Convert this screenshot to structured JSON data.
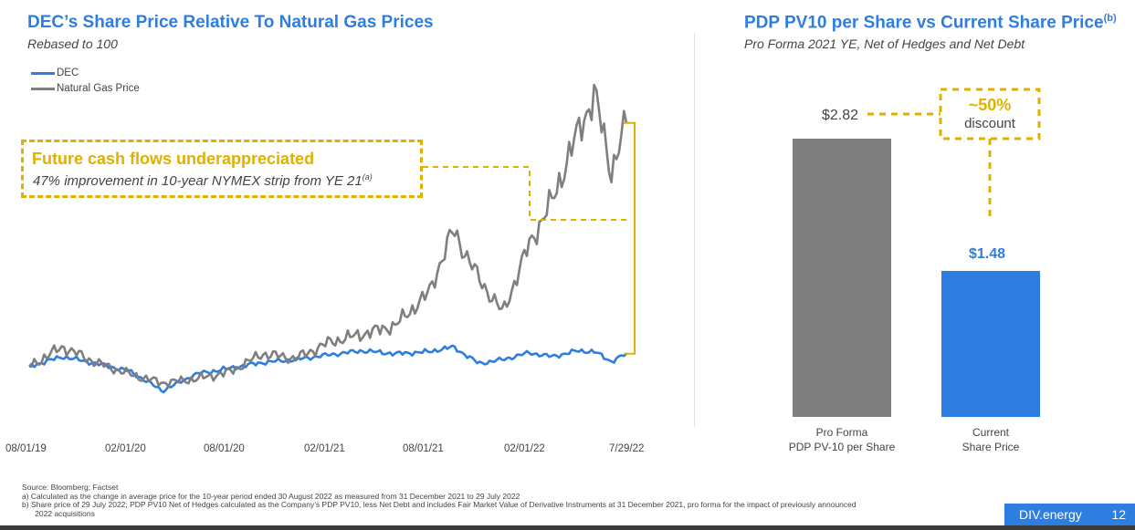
{
  "left_chart": {
    "title": "DEC’s Share Price Relative To Natural Gas Prices",
    "subtitle": "Rebased to 100",
    "legend": [
      {
        "label": "DEC",
        "color": "#2e7de1"
      },
      {
        "label": "Natural Gas Price",
        "color": "#7f7f7f"
      }
    ],
    "callout": {
      "heading": "Future cash flows underappreciated",
      "text": "47% improvement in 10-year NYMEX strip from YE 21",
      "superscript": "(a)"
    },
    "x_ticks": [
      "08/01/19",
      "02/01/20",
      "08/01/20",
      "02/01/21",
      "08/01/21",
      "02/01/22",
      "7/29/22"
    ]
  },
  "right_chart": {
    "title": "PDP PV10 per Share vs Current Share Price",
    "title_superscript": "(b)",
    "subtitle": "Pro Forma 2021 YE, Net of Hedges and Net Debt",
    "annotation_value": "~50%",
    "annotation_text": "discount",
    "bars": [
      {
        "value_label": "$2.82",
        "category_line1": "Pro Forma",
        "category_line2": "PDP PV-10 per Share",
        "color": "#7f7f7f"
      },
      {
        "value_label": "$1.48",
        "category_line1": "Current",
        "category_line2": "Share Price",
        "color": "#2e7de1"
      }
    ]
  },
  "footnotes": {
    "source": "Source: Bloomberg; Factset",
    "a": "a)   Calculated as the change in average price for the 10-year period ended 30 August 2022 as measured from 31 December 2021 to 29 July 2022",
    "b1": "b)   Share price of 29 July 2022; PDP PV10 Net of Hedges calculated as the Company’s PDP PV10, less Net Debt and includes Fair Market Value of Derivative Instruments at 31 December 2021, pro forma for the impact of previously announced",
    "b2": "      2022 acquisitions"
  },
  "brand": {
    "name": "DIV.energy",
    "page_number": "12"
  },
  "chart_data": [
    {
      "type": "line",
      "title": "DEC’s Share Price Relative To Natural Gas Prices",
      "subtitle": "Rebased to 100",
      "xlabel": "",
      "ylabel": "",
      "x": [
        "2019-08-01",
        "2019-10-01",
        "2019-12-01",
        "2020-02-01",
        "2020-04-01",
        "2020-06-01",
        "2020-08-01",
        "2020-10-01",
        "2020-12-01",
        "2021-02-01",
        "2021-04-01",
        "2021-06-01",
        "2021-08-01",
        "2021-09-15",
        "2021-11-01",
        "2021-12-15",
        "2022-02-01",
        "2022-03-15",
        "2022-05-01",
        "2022-06-01",
        "2022-07-01",
        "2022-07-29"
      ],
      "series": [
        {
          "name": "DEC",
          "values": [
            100,
            110,
            103,
            95,
            75,
            92,
            98,
            104,
            107,
            112,
            116,
            113,
            115,
            120,
            103,
            107,
            114,
            110,
            116,
            115,
            105,
            113
          ]
        },
        {
          "name": "Natural Gas Price",
          "values": [
            100,
            120,
            104,
            92,
            83,
            87,
            94,
            113,
            108,
            125,
            133,
            142,
            175,
            240,
            190,
            155,
            225,
            270,
            340,
            380,
            300,
            350
          ]
        }
      ],
      "ylim": [
        50,
        420
      ]
    },
    {
      "type": "bar",
      "title": "PDP PV10 per Share vs Current Share Price",
      "subtitle": "Pro Forma 2021 YE, Net of Hedges and Net Debt",
      "categories": [
        "Pro Forma PDP PV-10 per Share",
        "Current Share Price"
      ],
      "values": [
        2.82,
        1.48
      ],
      "annotation": "~50% discount",
      "ylim": [
        0,
        3.2
      ]
    }
  ]
}
